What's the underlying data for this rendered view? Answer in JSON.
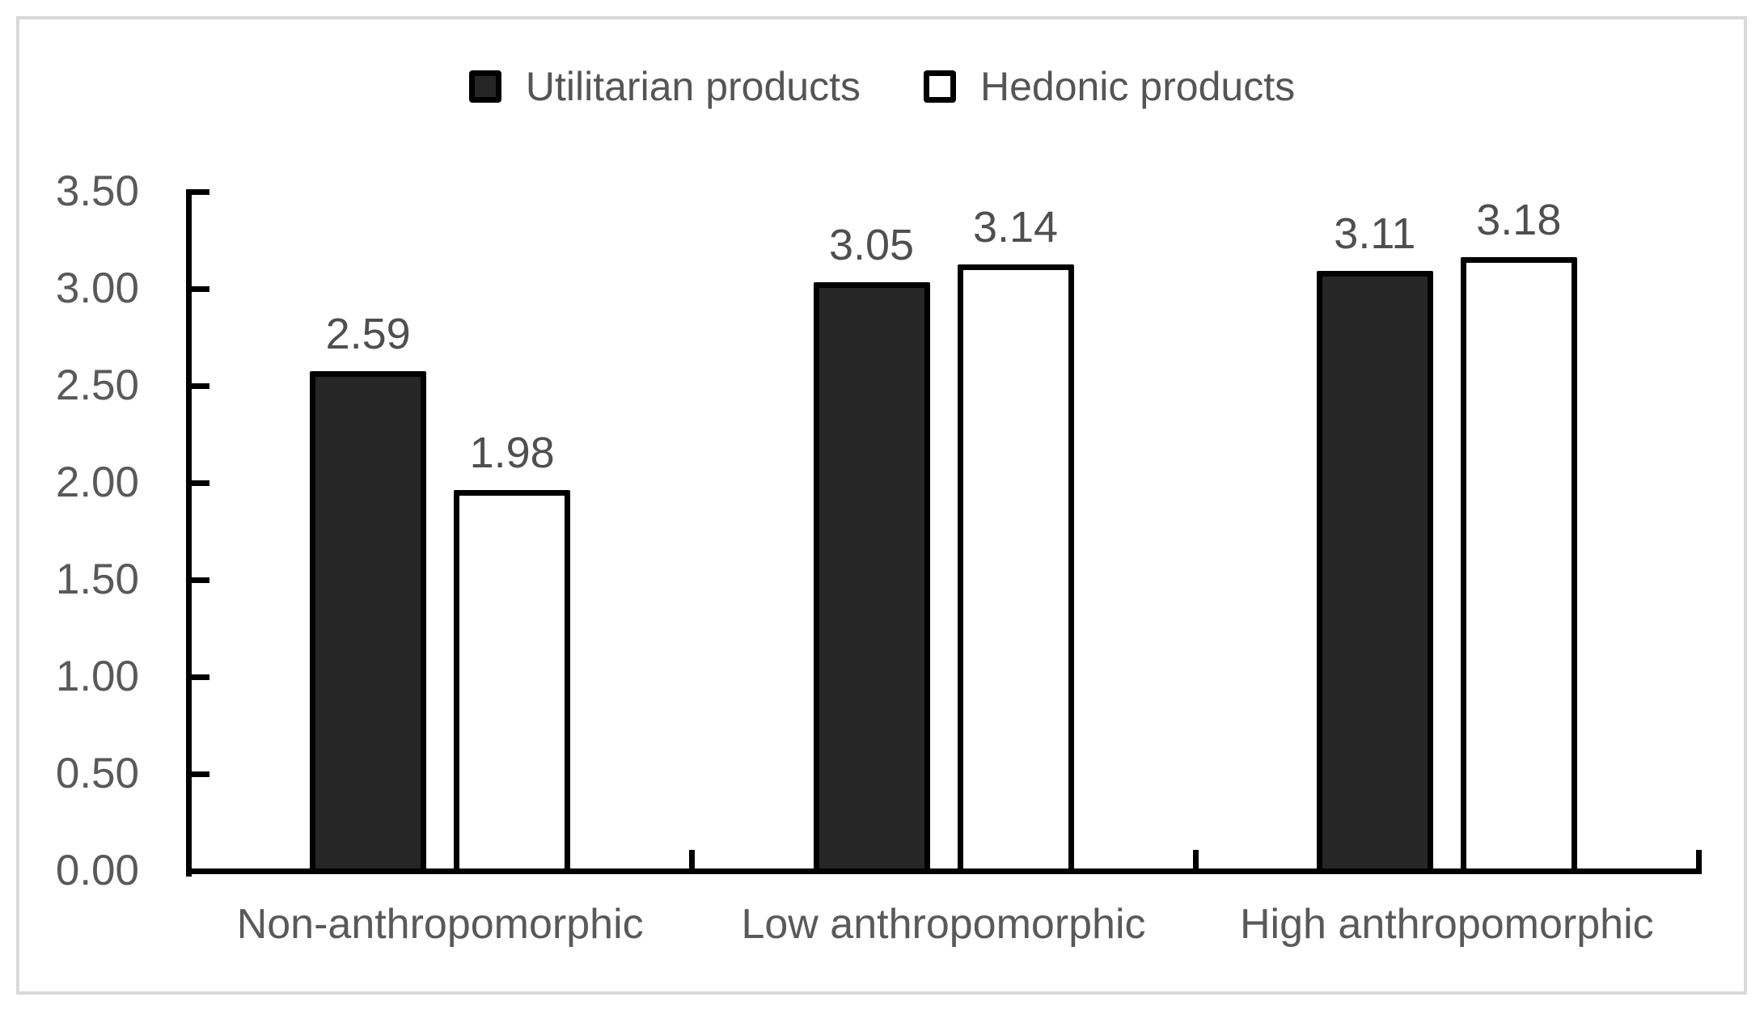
{
  "figure": {
    "background_color": "#ffffff",
    "frame_border_color": "#d9d9d9",
    "axis_color": "#000000",
    "text_color": "#595959"
  },
  "chart_data": {
    "type": "bar",
    "title": "",
    "xlabel": "",
    "ylabel": "",
    "grid": false,
    "legend_position": "top-center",
    "categories": [
      "Non-anthropomorphic",
      "Low anthropomorphic",
      "High anthropomorphic"
    ],
    "series": [
      {
        "name": "Utilitarian products",
        "values": [
          2.59,
          3.05,
          3.11
        ],
        "data_labels": [
          "2.59",
          "3.05",
          "3.11"
        ],
        "fill": "#262626",
        "border": "#000000"
      },
      {
        "name": "Hedonic products",
        "values": [
          1.98,
          3.14,
          3.18
        ],
        "data_labels": [
          "1.98",
          "3.14",
          "3.18"
        ],
        "fill": "#ffffff",
        "border": "#000000"
      }
    ],
    "ylim": [
      0,
      3.5
    ],
    "ytick_step": 0.5,
    "ytick_labels": [
      "0.00",
      "0.50",
      "1.00",
      "1.50",
      "2.00",
      "2.50",
      "3.00",
      "3.50"
    ]
  }
}
